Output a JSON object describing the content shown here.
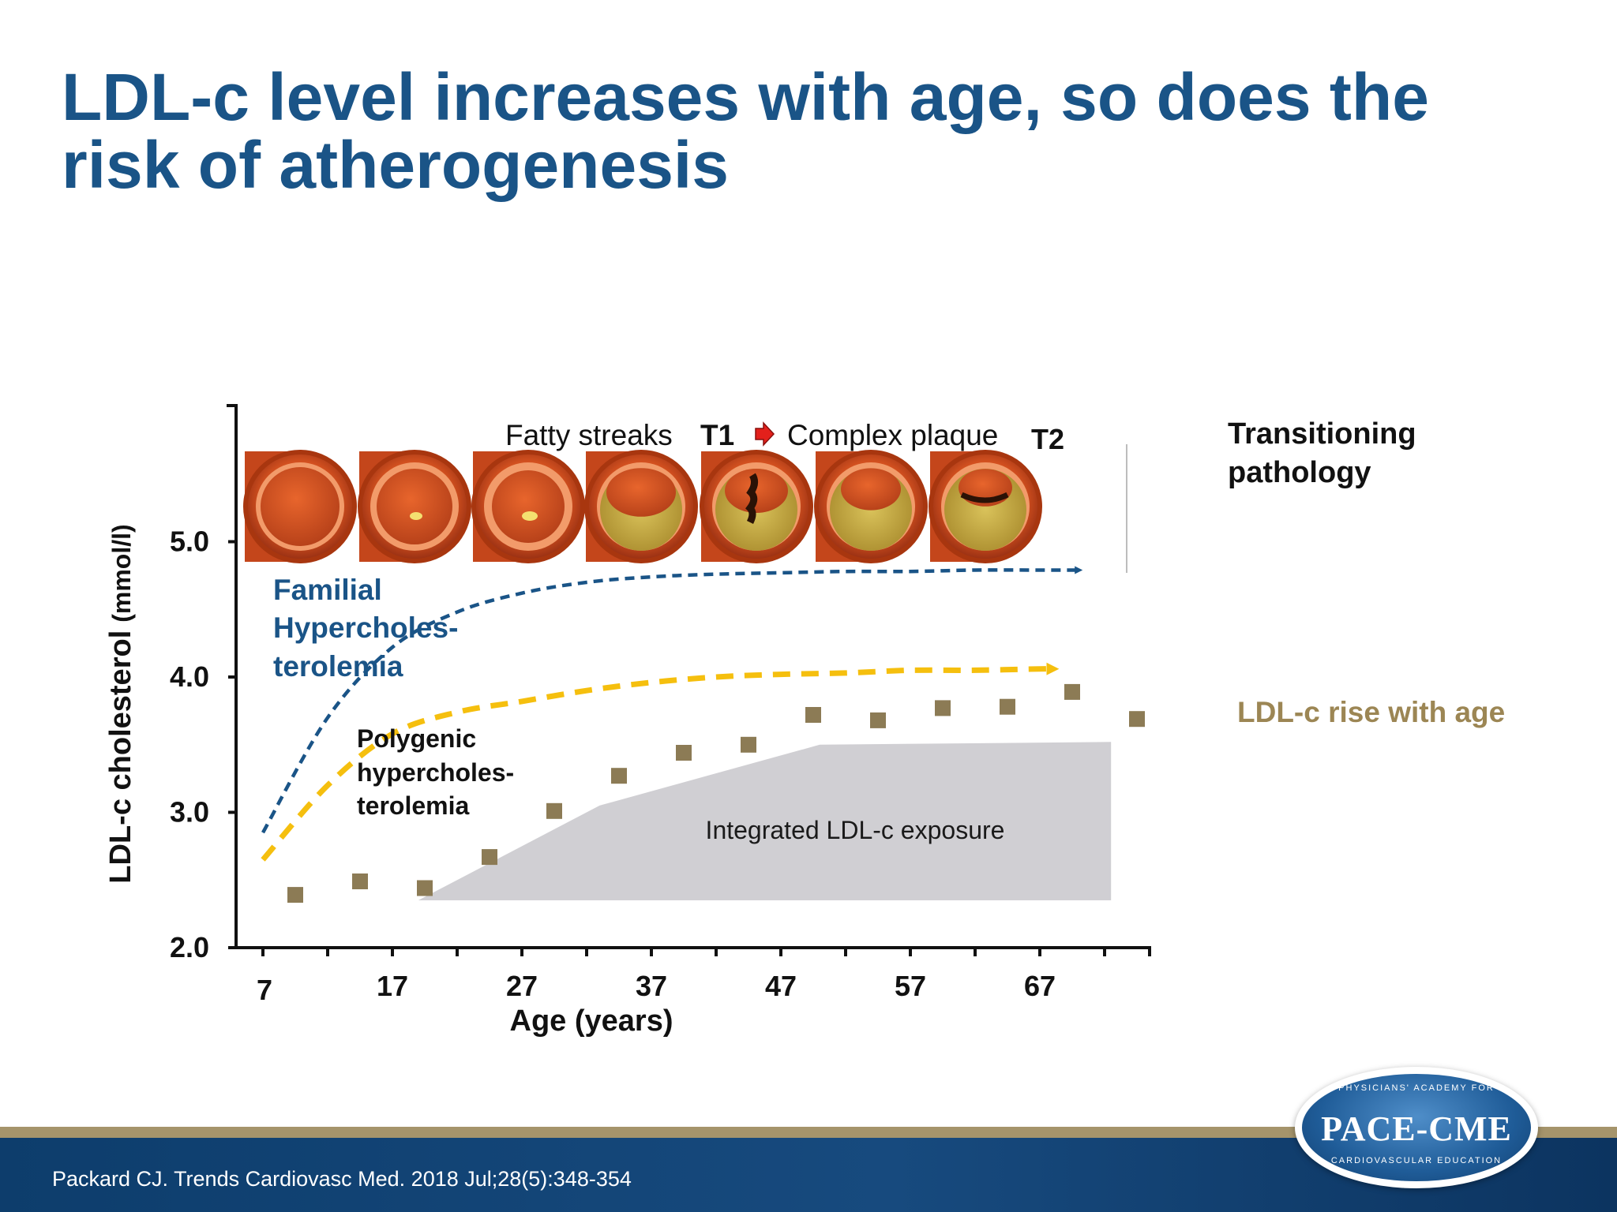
{
  "title": "LDL-c level increases with age, so does the risk of atherogenesis",
  "citation": "Packard  CJ. Trends Cardiovasc Med. 2018 Jul;28(5):348-354",
  "logo": {
    "name": "PACE-CME",
    "arc_top": "PHYSICIANS' ACADEMY FOR",
    "arc_bottom": "CARDIOVASCULAR EDUCATION"
  },
  "colors": {
    "title": "#1a5487",
    "fh": "#1a5487",
    "polygenic": "#f5bf0e",
    "markers": "#8c7b55",
    "exposure": "#d0cfd3",
    "ldl_rise_label": "#9c8654"
  },
  "chart_data": {
    "type": "scatter",
    "xlabel": "Age (years)",
    "ylabel_main": "LDL-c cholesterol",
    "ylabel_unit": "(mmol/l)",
    "x_ticks": [
      "7",
      "17",
      "27",
      "37",
      "47",
      "57",
      "67"
    ],
    "y_ticks": [
      "2.0",
      "3.0",
      "4.0",
      "5.0"
    ],
    "xlim": [
      4.5,
      74
    ],
    "ylim": [
      2.0,
      6.0
    ],
    "grid": false,
    "series": [
      {
        "name": "LDL-c rise with age",
        "x": [
          9.5,
          14.5,
          19.5,
          24.5,
          29.5,
          34.5,
          39.5,
          44.5,
          49.5,
          54.5,
          59.5,
          64.5,
          69.5,
          74.5
        ],
        "y": [
          2.39,
          2.49,
          2.44,
          2.67,
          3.01,
          3.27,
          3.44,
          3.5,
          3.72,
          3.68,
          3.77,
          3.78,
          3.89,
          3.69
        ]
      }
    ],
    "curves": [
      {
        "label": "Familial Hypercholes-terolemia",
        "label_lines": [
          "Familial",
          "Hypercholes-",
          "terolemia"
        ],
        "x": [
          7,
          12,
          17,
          22,
          27,
          32,
          37,
          42,
          47,
          52,
          57,
          62,
          67,
          70
        ],
        "y": [
          2.85,
          3.7,
          4.22,
          4.48,
          4.62,
          4.7,
          4.74,
          4.76,
          4.77,
          4.78,
          4.78,
          4.79,
          4.79,
          4.79
        ]
      },
      {
        "label": "Polygenic hypercholes-terolemia",
        "label_lines": [
          "Polygenic",
          "hypercholes-",
          "terolemia"
        ],
        "x": [
          7,
          12,
          17,
          22,
          27,
          32,
          37,
          42,
          47,
          52,
          57,
          62,
          67,
          68
        ],
        "y": [
          2.65,
          3.2,
          3.58,
          3.74,
          3.82,
          3.9,
          3.96,
          4.0,
          4.02,
          4.03,
          4.05,
          4.05,
          4.06,
          4.06
        ]
      }
    ],
    "exposure_area": {
      "label": "Integrated LDL-c exposure",
      "x": [
        19,
        33,
        50,
        72.5,
        72.5,
        19
      ],
      "y": [
        2.35,
        3.05,
        3.5,
        3.52,
        2.35,
        2.35
      ]
    },
    "annotations": {
      "stage_fatty": "Fatty streaks",
      "stage_t1": "T1",
      "stage_complex": "Complex plaque",
      "stage_t2": "T2",
      "transitioning": [
        "Transitioning",
        "pathology"
      ],
      "ldl_rise": "LDL-c rise with age"
    }
  }
}
